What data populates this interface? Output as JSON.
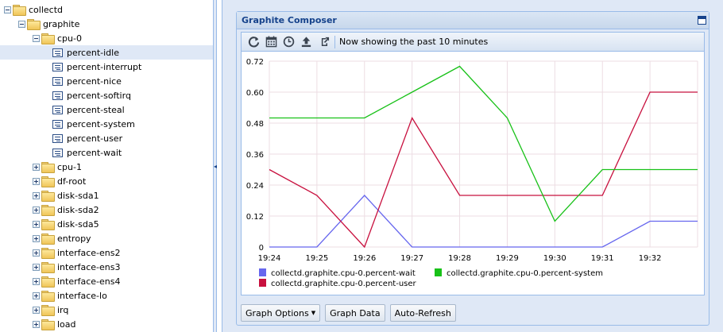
{
  "tree": {
    "items": [
      {
        "label": "collectd",
        "depth": 0,
        "kind": "folder",
        "toggle": "minus"
      },
      {
        "label": "graphite",
        "depth": 1,
        "kind": "folder",
        "toggle": "minus"
      },
      {
        "label": "cpu-0",
        "depth": 2,
        "kind": "folder",
        "toggle": "minus"
      },
      {
        "label": "percent-idle",
        "depth": 3,
        "kind": "leaf",
        "selected": true
      },
      {
        "label": "percent-interrupt",
        "depth": 3,
        "kind": "leaf"
      },
      {
        "label": "percent-nice",
        "depth": 3,
        "kind": "leaf"
      },
      {
        "label": "percent-softirq",
        "depth": 3,
        "kind": "leaf"
      },
      {
        "label": "percent-steal",
        "depth": 3,
        "kind": "leaf"
      },
      {
        "label": "percent-system",
        "depth": 3,
        "kind": "leaf"
      },
      {
        "label": "percent-user",
        "depth": 3,
        "kind": "leaf"
      },
      {
        "label": "percent-wait",
        "depth": 3,
        "kind": "leaf"
      },
      {
        "label": "cpu-1",
        "depth": 2,
        "kind": "folder",
        "toggle": "plus"
      },
      {
        "label": "df-root",
        "depth": 2,
        "kind": "folder",
        "toggle": "plus"
      },
      {
        "label": "disk-sda1",
        "depth": 2,
        "kind": "folder",
        "toggle": "plus"
      },
      {
        "label": "disk-sda2",
        "depth": 2,
        "kind": "folder",
        "toggle": "plus"
      },
      {
        "label": "disk-sda5",
        "depth": 2,
        "kind": "folder",
        "toggle": "plus"
      },
      {
        "label": "entropy",
        "depth": 2,
        "kind": "folder",
        "toggle": "plus"
      },
      {
        "label": "interface-ens2",
        "depth": 2,
        "kind": "folder",
        "toggle": "plus"
      },
      {
        "label": "interface-ens3",
        "depth": 2,
        "kind": "folder",
        "toggle": "plus"
      },
      {
        "label": "interface-ens4",
        "depth": 2,
        "kind": "folder",
        "toggle": "plus"
      },
      {
        "label": "interface-lo",
        "depth": 2,
        "kind": "folder",
        "toggle": "plus"
      },
      {
        "label": "irq",
        "depth": 2,
        "kind": "folder",
        "toggle": "plus"
      },
      {
        "label": "load",
        "depth": 2,
        "kind": "folder",
        "toggle": "plus"
      }
    ]
  },
  "composer": {
    "title": "Graphite Composer",
    "toolbar": {
      "icons": [
        "refresh-icon",
        "calendar-icon",
        "clock-icon",
        "upload-icon",
        "share-icon"
      ],
      "range_text": "Now showing the past 10 minutes"
    },
    "buttons": {
      "graph_options": "Graph Options",
      "graph_data": "Graph Data",
      "auto_refresh": "Auto-Refresh"
    }
  },
  "chart_data": {
    "type": "line",
    "x": [
      "19:24",
      "19:25",
      "19:26",
      "19:27",
      "19:28",
      "19:29",
      "19:30",
      "19:31",
      "19:32",
      "19:33"
    ],
    "x_tick_labels": [
      "19:24",
      "19:25",
      "19:26",
      "19:27",
      "19:28",
      "19:29",
      "19:30",
      "19:31",
      "19:32"
    ],
    "y_ticks": [
      "0",
      "0.12",
      "0.24",
      "0.36",
      "0.48",
      "0.60",
      "0.72"
    ],
    "ylim": [
      0,
      0.72
    ],
    "grid": true,
    "legend_position": "bottom",
    "series": [
      {
        "name": "collectd.graphite.cpu-0.percent-wait",
        "color": "#6666ee",
        "values": [
          0,
          0,
          0.2,
          0,
          0,
          0,
          0,
          0,
          0.1,
          0.1
        ]
      },
      {
        "name": "collectd.graphite.cpu-0.percent-user",
        "color": "#c8103e",
        "values": [
          0.3,
          0.2,
          0,
          0.5,
          0.2,
          0.2,
          0.2,
          0.2,
          0.6,
          0.6
        ]
      },
      {
        "name": "collectd.graphite.cpu-0.percent-system",
        "color": "#18c118",
        "values": [
          0.5,
          0.5,
          0.5,
          0.6,
          0.7,
          0.5,
          0.1,
          0.3,
          0.3,
          0.3
        ]
      }
    ]
  }
}
